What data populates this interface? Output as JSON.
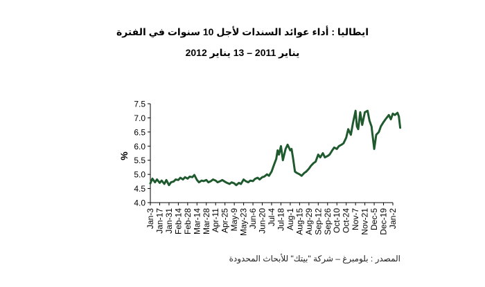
{
  "chart_data": {
    "type": "line",
    "title": "ايطاليا : أداء عوائد السندات لأجل 10 سنوات في الفترة",
    "subtitle": "يناير 2011 – 13 يناير  2012",
    "xlabel": "",
    "ylabel": "%",
    "ylim": [
      4.0,
      7.5
    ],
    "yticks": [
      "4.0",
      "4.5",
      "5.0",
      "5.5",
      "6.0",
      "6.5",
      "7.0",
      "7.5"
    ],
    "grid": false,
    "legend": "none",
    "x_tick_labels": [
      "Jan-3",
      "Jan-17",
      "Jan-31",
      "Feb-14",
      "Feb-28",
      "Mar-14",
      "Mar-28",
      "Apr-11",
      "Apr-25",
      "May-9",
      "May-23",
      "Jun-6",
      "Jun-20",
      "Jul-4",
      "Jul-18",
      "Aug-1",
      "Aug-15",
      "Aug-29",
      "Sep-12",
      "Sep-26",
      "Oct-10",
      "Oct-24",
      "Nov-7",
      "Nov-21",
      "Dec-5",
      "Dec-19",
      "Jan-2"
    ],
    "series": [
      {
        "color": "#1e5a2e",
        "x": [
          "Jan-3",
          "Jan-6",
          "Jan-10",
          "Jan-13",
          "Jan-17",
          "Jan-20",
          "Jan-24",
          "Jan-27",
          "Jan-31",
          "Feb-3",
          "Feb-7",
          "Feb-10",
          "Feb-14",
          "Feb-17",
          "Feb-21",
          "Feb-24",
          "Feb-28",
          "Mar-3",
          "Mar-7",
          "Mar-10",
          "Mar-14",
          "Mar-17",
          "Mar-21",
          "Mar-24",
          "Mar-28",
          "Mar-31",
          "Apr-4",
          "Apr-7",
          "Apr-11",
          "Apr-14",
          "Apr-18",
          "Apr-21",
          "Apr-25",
          "Apr-28",
          "May-2",
          "May-5",
          "May-9",
          "May-12",
          "May-16",
          "May-19",
          "May-23",
          "May-26",
          "May-30",
          "Jun-2",
          "Jun-6",
          "Jun-9",
          "Jun-13",
          "Jun-16",
          "Jun-20",
          "Jun-23",
          "Jun-27",
          "Jun-30",
          "Jul-4",
          "Jul-7",
          "Jul-11",
          "Jul-13",
          "Jul-15",
          "Jul-18",
          "Jul-21",
          "Jul-25",
          "Jul-28",
          "Aug-1",
          "Aug-3",
          "Aug-5",
          "Aug-8",
          "Aug-11",
          "Aug-15",
          "Aug-18",
          "Aug-22",
          "Aug-25",
          "Aug-29",
          "Sep-1",
          "Sep-5",
          "Sep-8",
          "Sep-12",
          "Sep-15",
          "Sep-19",
          "Sep-22",
          "Sep-26",
          "Sep-29",
          "Oct-3",
          "Oct-6",
          "Oct-10",
          "Oct-13",
          "Oct-17",
          "Oct-20",
          "Oct-24",
          "Oct-27",
          "Oct-31",
          "Nov-3",
          "Nov-7",
          "Nov-9",
          "Nov-11",
          "Nov-14",
          "Nov-17",
          "Nov-21",
          "Nov-25",
          "Nov-28",
          "Dec-1",
          "Dec-5",
          "Dec-8",
          "Dec-12",
          "Dec-15",
          "Dec-19",
          "Dec-22",
          "Dec-27",
          "Dec-30",
          "Jan-2",
          "Jan-5",
          "Jan-9",
          "Jan-11",
          "Jan-13"
        ],
        "y": [
          4.68,
          4.85,
          4.72,
          4.82,
          4.7,
          4.78,
          4.66,
          4.8,
          4.62,
          4.72,
          4.75,
          4.82,
          4.8,
          4.88,
          4.82,
          4.9,
          4.85,
          4.92,
          4.9,
          4.98,
          4.8,
          4.72,
          4.78,
          4.76,
          4.8,
          4.72,
          4.76,
          4.82,
          4.78,
          4.72,
          4.76,
          4.8,
          4.74,
          4.7,
          4.66,
          4.72,
          4.68,
          4.62,
          4.7,
          4.66,
          4.82,
          4.76,
          4.72,
          4.78,
          4.76,
          4.84,
          4.88,
          4.82,
          4.9,
          4.92,
          5.0,
          4.95,
          5.1,
          5.3,
          5.55,
          5.85,
          5.7,
          6.0,
          5.5,
          5.9,
          6.05,
          5.85,
          5.9,
          5.6,
          5.1,
          5.05,
          5.0,
          4.95,
          5.05,
          5.1,
          5.2,
          5.3,
          5.4,
          5.45,
          5.7,
          5.6,
          5.75,
          5.6,
          5.65,
          5.7,
          5.85,
          5.95,
          5.9,
          6.0,
          6.05,
          6.1,
          6.3,
          6.6,
          6.4,
          6.8,
          7.25,
          6.7,
          6.6,
          7.2,
          6.75,
          7.2,
          7.25,
          6.9,
          6.7,
          5.9,
          6.4,
          6.5,
          6.7,
          6.85,
          6.95,
          7.1,
          6.95,
          7.15,
          7.1,
          7.18,
          7.05,
          6.65
        ]
      }
    ]
  },
  "source_note": "المصدر : بلومبرغ – شركة \"بيتك\" للأبحاث المحدودة"
}
